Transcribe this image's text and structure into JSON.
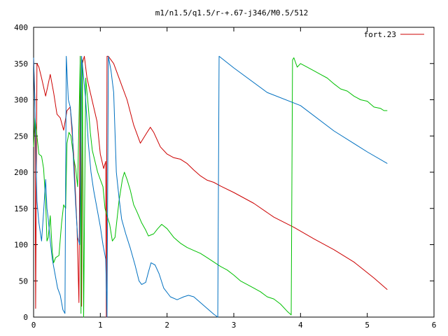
{
  "chart_data": {
    "type": "line",
    "title": "m1/n1.5/q1.5/r-+.67-j346/M0.5/512",
    "xlabel": "",
    "ylabel": "",
    "xlim": [
      0,
      6
    ],
    "ylim": [
      0,
      400
    ],
    "x_ticks": [
      "0",
      "1",
      "2",
      "3",
      "4",
      "5",
      "6"
    ],
    "y_ticks": [
      "0",
      "50",
      "100",
      "150",
      "200",
      "250",
      "300",
      "350",
      "400"
    ],
    "legend": {
      "placement": "top-right",
      "entries": [
        "fort.23"
      ]
    },
    "grid": false,
    "series": [
      {
        "name": "fort.23",
        "color": "#cc0000",
        "points": [
          [
            0.0,
            358
          ],
          [
            0.02,
            300
          ],
          [
            0.03,
            12
          ],
          [
            0.05,
            350
          ],
          [
            0.08,
            345
          ],
          [
            0.12,
            330
          ],
          [
            0.18,
            305
          ],
          [
            0.25,
            335
          ],
          [
            0.3,
            310
          ],
          [
            0.35,
            280
          ],
          [
            0.4,
            275
          ],
          [
            0.45,
            258
          ],
          [
            0.5,
            285
          ],
          [
            0.55,
            290
          ],
          [
            0.6,
            225
          ],
          [
            0.65,
            125
          ],
          [
            0.68,
            20
          ],
          [
            0.7,
            360
          ],
          [
            0.72,
            15
          ],
          [
            0.73,
            350
          ],
          [
            0.76,
            360
          ],
          [
            0.8,
            330
          ],
          [
            0.85,
            310
          ],
          [
            0.9,
            290
          ],
          [
            0.95,
            270
          ],
          [
            1.0,
            225
          ],
          [
            1.05,
            205
          ],
          [
            1.08,
            215
          ],
          [
            1.09,
            0
          ],
          [
            1.1,
            360
          ],
          [
            1.12,
            360
          ],
          [
            1.2,
            350
          ],
          [
            1.3,
            325
          ],
          [
            1.4,
            300
          ],
          [
            1.5,
            265
          ],
          [
            1.6,
            240
          ],
          [
            1.7,
            255
          ],
          [
            1.75,
            262
          ],
          [
            1.8,
            255
          ],
          [
            1.9,
            235
          ],
          [
            2.0,
            225
          ],
          [
            2.1,
            220
          ],
          [
            2.2,
            218
          ],
          [
            2.3,
            212
          ],
          [
            2.4,
            203
          ],
          [
            2.5,
            195
          ],
          [
            2.6,
            189
          ],
          [
            2.7,
            186
          ],
          [
            2.8,
            181
          ],
          [
            3.0,
            172
          ],
          [
            3.3,
            157
          ],
          [
            3.6,
            138
          ],
          [
            3.9,
            124
          ],
          [
            4.2,
            108
          ],
          [
            4.5,
            93
          ],
          [
            4.8,
            76
          ],
          [
            5.1,
            54
          ],
          [
            5.3,
            38
          ]
        ]
      },
      {
        "name": "",
        "color": "#00c000",
        "points": [
          [
            0.0,
            235
          ],
          [
            0.02,
            275
          ],
          [
            0.05,
            250
          ],
          [
            0.08,
            225
          ],
          [
            0.12,
            222
          ],
          [
            0.15,
            205
          ],
          [
            0.18,
            160
          ],
          [
            0.2,
            105
          ],
          [
            0.22,
            110
          ],
          [
            0.25,
            140
          ],
          [
            0.28,
            90
          ],
          [
            0.3,
            75
          ],
          [
            0.33,
            82
          ],
          [
            0.38,
            85
          ],
          [
            0.42,
            130
          ],
          [
            0.45,
            155
          ],
          [
            0.48,
            150
          ],
          [
            0.5,
            240
          ],
          [
            0.53,
            255
          ],
          [
            0.56,
            250
          ],
          [
            0.6,
            220
          ],
          [
            0.63,
            205
          ],
          [
            0.66,
            180
          ],
          [
            0.7,
            360
          ],
          [
            0.71,
            5
          ],
          [
            0.73,
            355
          ],
          [
            0.75,
            0
          ],
          [
            0.78,
            330
          ],
          [
            0.82,
            290
          ],
          [
            0.85,
            255
          ],
          [
            0.88,
            230
          ],
          [
            0.92,
            215
          ],
          [
            0.96,
            200
          ],
          [
            1.0,
            190
          ],
          [
            1.04,
            180
          ],
          [
            1.07,
            150
          ],
          [
            1.1,
            140
          ],
          [
            1.14,
            128
          ],
          [
            1.18,
            105
          ],
          [
            1.22,
            110
          ],
          [
            1.28,
            160
          ],
          [
            1.33,
            190
          ],
          [
            1.36,
            200
          ],
          [
            1.4,
            190
          ],
          [
            1.45,
            175
          ],
          [
            1.5,
            155
          ],
          [
            1.55,
            145
          ],
          [
            1.62,
            130
          ],
          [
            1.68,
            120
          ],
          [
            1.72,
            112
          ],
          [
            1.8,
            115
          ],
          [
            1.86,
            122
          ],
          [
            1.92,
            128
          ],
          [
            2.0,
            122
          ],
          [
            2.1,
            110
          ],
          [
            2.2,
            102
          ],
          [
            2.3,
            96
          ],
          [
            2.4,
            92
          ],
          [
            2.5,
            88
          ],
          [
            2.6,
            82
          ],
          [
            2.7,
            76
          ],
          [
            2.8,
            70
          ],
          [
            2.9,
            65
          ],
          [
            3.0,
            58
          ],
          [
            3.1,
            50
          ],
          [
            3.2,
            45
          ],
          [
            3.3,
            40
          ],
          [
            3.4,
            35
          ],
          [
            3.5,
            28
          ],
          [
            3.6,
            25
          ],
          [
            3.7,
            18
          ],
          [
            3.8,
            8
          ],
          [
            3.86,
            3
          ],
          [
            3.88,
            355
          ],
          [
            3.9,
            358
          ],
          [
            3.95,
            345
          ],
          [
            4.0,
            350
          ],
          [
            4.1,
            345
          ],
          [
            4.2,
            340
          ],
          [
            4.3,
            335
          ],
          [
            4.4,
            330
          ],
          [
            4.5,
            322
          ],
          [
            4.6,
            315
          ],
          [
            4.7,
            312
          ],
          [
            4.8,
            305
          ],
          [
            4.9,
            300
          ],
          [
            5.0,
            298
          ],
          [
            5.1,
            290
          ],
          [
            5.2,
            288
          ],
          [
            5.25,
            285
          ],
          [
            5.3,
            285
          ]
        ]
      },
      {
        "name": "",
        "color": "#0070c0",
        "points": [
          [
            0.0,
            358
          ],
          [
            0.02,
            290
          ],
          [
            0.05,
            160
          ],
          [
            0.08,
            130
          ],
          [
            0.12,
            105
          ],
          [
            0.15,
            145
          ],
          [
            0.18,
            190
          ],
          [
            0.2,
            150
          ],
          [
            0.22,
            135
          ],
          [
            0.25,
            105
          ],
          [
            0.28,
            80
          ],
          [
            0.32,
            60
          ],
          [
            0.36,
            40
          ],
          [
            0.4,
            30
          ],
          [
            0.44,
            10
          ],
          [
            0.47,
            5
          ],
          [
            0.49,
            360
          ],
          [
            0.52,
            300
          ],
          [
            0.55,
            290
          ],
          [
            0.58,
            260
          ],
          [
            0.6,
            210
          ],
          [
            0.63,
            155
          ],
          [
            0.66,
            110
          ],
          [
            0.69,
            100
          ],
          [
            0.72,
            360
          ],
          [
            0.74,
            340
          ],
          [
            0.78,
            300
          ],
          [
            0.82,
            240
          ],
          [
            0.86,
            200
          ],
          [
            0.9,
            175
          ],
          [
            0.95,
            150
          ],
          [
            1.0,
            125
          ],
          [
            1.04,
            100
          ],
          [
            1.08,
            80
          ],
          [
            1.1,
            0
          ],
          [
            1.12,
            360
          ],
          [
            1.16,
            340
          ],
          [
            1.2,
            310
          ],
          [
            1.24,
            200
          ],
          [
            1.28,
            165
          ],
          [
            1.32,
            135
          ],
          [
            1.38,
            115
          ],
          [
            1.45,
            95
          ],
          [
            1.52,
            72
          ],
          [
            1.58,
            50
          ],
          [
            1.62,
            45
          ],
          [
            1.68,
            48
          ],
          [
            1.72,
            62
          ],
          [
            1.76,
            75
          ],
          [
            1.82,
            72
          ],
          [
            1.88,
            60
          ],
          [
            1.95,
            40
          ],
          [
            2.05,
            28
          ],
          [
            2.15,
            24
          ],
          [
            2.25,
            28
          ],
          [
            2.32,
            30
          ],
          [
            2.4,
            28
          ],
          [
            2.5,
            20
          ],
          [
            2.6,
            12
          ],
          [
            2.7,
            4
          ],
          [
            2.76,
            0
          ],
          [
            2.78,
            360
          ],
          [
            3.0,
            344
          ],
          [
            3.5,
            310
          ],
          [
            4.0,
            292
          ],
          [
            4.5,
            257
          ],
          [
            5.0,
            228
          ],
          [
            5.3,
            212
          ]
        ]
      }
    ]
  }
}
